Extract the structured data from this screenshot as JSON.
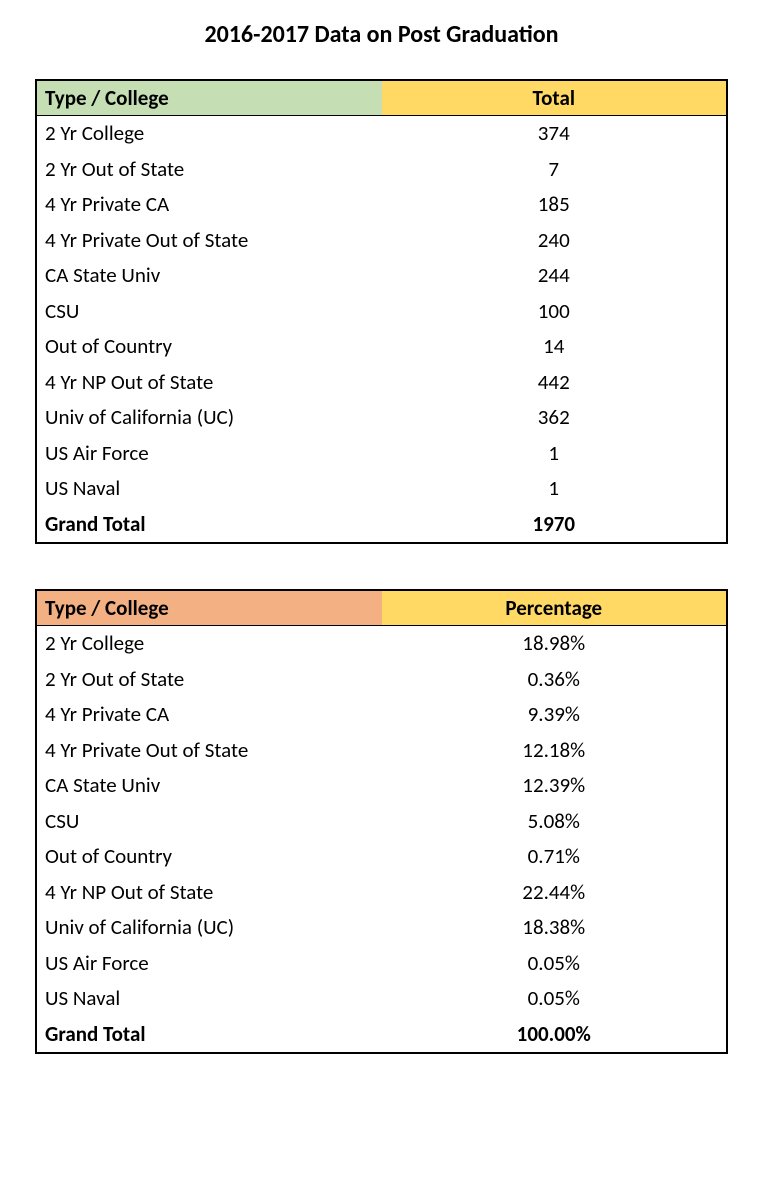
{
  "title": "2016-2017 Data on Post Graduation",
  "table1": {
    "header_colors": {
      "col1_bg": "#c5deb4",
      "col2_bg": "#ffd964"
    },
    "columns": [
      "Type / College",
      "Total"
    ],
    "rows": [
      {
        "label": "2 Yr College",
        "value": "374"
      },
      {
        "label": "2 Yr Out of State",
        "value": "7"
      },
      {
        "label": "4 Yr Private CA",
        "value": "185"
      },
      {
        "label": "4 Yr Private Out of State",
        "value": "240"
      },
      {
        "label": "CA State Univ",
        "value": "244"
      },
      {
        "label": "CSU",
        "value": "100"
      },
      {
        "label": "Out of Country",
        "value": "14"
      },
      {
        "label": "4 Yr NP Out of State",
        "value": "442"
      },
      {
        "label": "Univ of California (UC)",
        "value": "362"
      },
      {
        "label": "US Air Force",
        "value": "1"
      },
      {
        "label": "US Naval",
        "value": "1"
      }
    ],
    "total": {
      "label": "Grand Total",
      "value": "1970"
    }
  },
  "table2": {
    "header_colors": {
      "col1_bg": "#f3b083",
      "col2_bg": "#ffd964"
    },
    "columns": [
      "Type / College",
      "Percentage"
    ],
    "rows": [
      {
        "label": "2 Yr College",
        "value": "18.98%"
      },
      {
        "label": "2 Yr Out of State",
        "value": "0.36%"
      },
      {
        "label": "4 Yr Private CA",
        "value": "9.39%"
      },
      {
        "label": "4 Yr Private Out of State",
        "value": "12.18%"
      },
      {
        "label": "CA State Univ",
        "value": "12.39%"
      },
      {
        "label": "CSU",
        "value": "5.08%"
      },
      {
        "label": "Out of Country",
        "value": "0.71%"
      },
      {
        "label": "4 Yr NP Out of State",
        "value": "22.44%"
      },
      {
        "label": "Univ of California (UC)",
        "value": "18.38%"
      },
      {
        "label": "US Air Force",
        "value": "0.05%"
      },
      {
        "label": "US Naval",
        "value": "0.05%"
      }
    ],
    "total": {
      "label": "Grand Total",
      "value": "100.00%"
    }
  },
  "styling": {
    "border_color": "#000000",
    "text_color": "#000000",
    "background_color": "#ffffff",
    "title_fontsize": 24,
    "cell_fontsize": 21,
    "font_family": "Calibri"
  }
}
